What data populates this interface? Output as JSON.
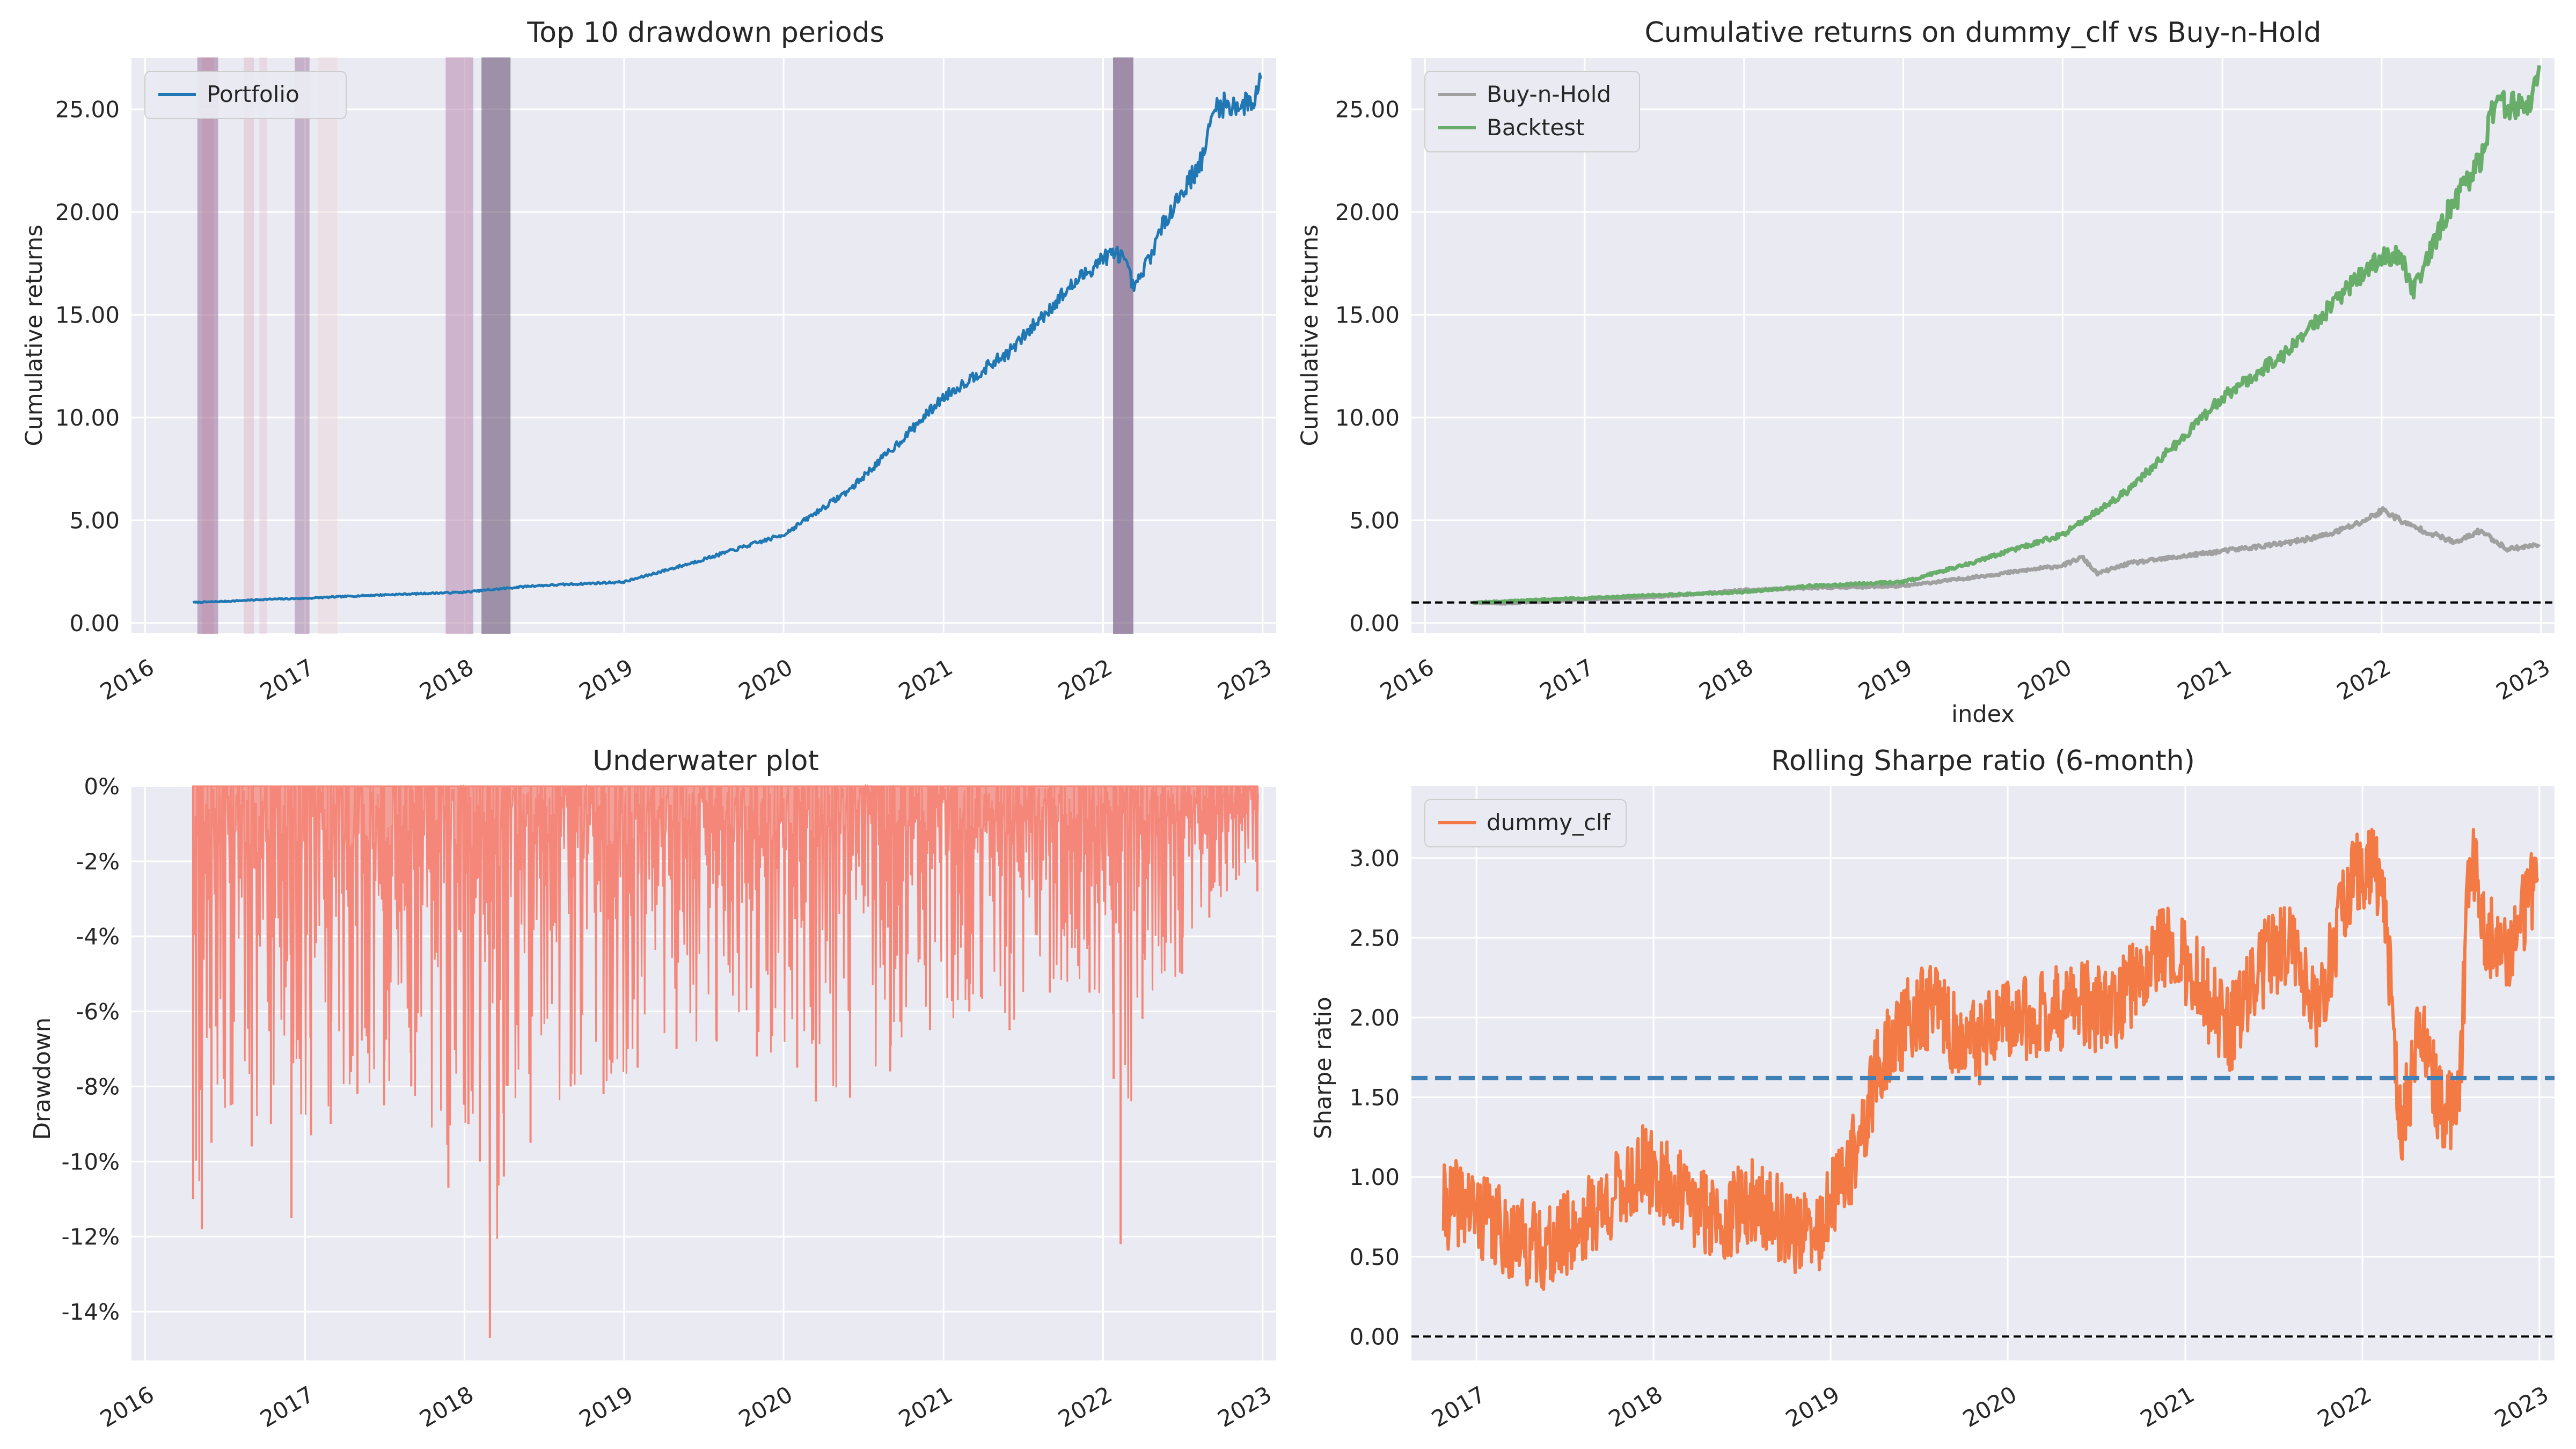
{
  "colors": {
    "axes_bg": "#EAEAF2",
    "grid": "#FFFFFF",
    "portfolio": "#1F77B4",
    "benchmark": "#A0A0A0",
    "backtest": "#68AD6A",
    "underwater": "#F4877A",
    "sharpe": "#F47A45",
    "sharpe_mean": "#3E7FB5",
    "reference": "#000000"
  },
  "chart_data": [
    {
      "id": "drawdown_periods",
      "type": "line",
      "title": "Top 10 drawdown periods",
      "xlabel": "",
      "ylabel": "Cumulative returns",
      "x_ticks": [
        "2016",
        "2017",
        "2018",
        "2019",
        "2020",
        "2021",
        "2022",
        "2023"
      ],
      "y_ticks": [
        "0.00",
        "5.00",
        "10.00",
        "15.00",
        "20.00",
        "25.00"
      ],
      "xlim": [
        "2015-12-01",
        "2023-02-01"
      ],
      "ylim": [
        -0.5,
        27.5
      ],
      "legend": {
        "placement": "top-left",
        "entries": [
          "Portfolio"
        ]
      },
      "series": [
        {
          "name": "Portfolio",
          "x": [
            "2016-04-20",
            "2016-07-01",
            "2016-10-01",
            "2017-01-01",
            "2017-06-01",
            "2018-01-01",
            "2018-06-01",
            "2019-01-01",
            "2019-06-01",
            "2020-01-01",
            "2020-06-01",
            "2020-10-01",
            "2021-01-01",
            "2021-06-01",
            "2021-10-01",
            "2022-01-01",
            "2022-02-10",
            "2022-03-15",
            "2022-06-01",
            "2022-08-15",
            "2022-09-15",
            "2022-11-15",
            "2022-12-10",
            "2022-12-28"
          ],
          "values": [
            1.0,
            1.05,
            1.15,
            1.2,
            1.35,
            1.5,
            1.8,
            2.0,
            2.9,
            4.3,
            6.5,
            9.0,
            11.0,
            13.2,
            16.0,
            17.8,
            18.0,
            16.2,
            20.0,
            22.5,
            25.2,
            25.2,
            25.4,
            26.5
          ]
        }
      ],
      "drawdown_periods": [
        {
          "start": "2016-05-01",
          "end": "2016-06-15",
          "shade": "#8C5A8C",
          "opacity": 0.45
        },
        {
          "start": "2016-05-12",
          "end": "2016-06-05",
          "shade": "#C98AA3",
          "opacity": 0.35
        },
        {
          "start": "2016-08-15",
          "end": "2016-09-05",
          "shade": "#D9A8B8",
          "opacity": 0.35
        },
        {
          "start": "2016-09-20",
          "end": "2016-10-05",
          "shade": "#E4B8C8",
          "opacity": 0.35
        },
        {
          "start": "2016-12-10",
          "end": "2017-01-10",
          "shade": "#9A6A9A",
          "opacity": 0.45
        },
        {
          "start": "2017-02-01",
          "end": "2017-03-15",
          "shade": "#EED6D6",
          "opacity": 0.45
        },
        {
          "start": "2017-11-20",
          "end": "2018-01-20",
          "shade": "#B889B0",
          "opacity": 0.55
        },
        {
          "start": "2018-02-10",
          "end": "2018-04-15",
          "shade": "#5E4A6A",
          "opacity": 0.55
        },
        {
          "start": "2022-01-25",
          "end": "2022-03-10",
          "shade": "#6E4F78",
          "opacity": 0.6
        }
      ]
    },
    {
      "id": "cumulative_returns",
      "type": "line",
      "title": "Cumulative returns on dummy_clf vs Buy-n-Hold",
      "xlabel": "index",
      "ylabel": "Cumulative returns",
      "x_ticks": [
        "2016",
        "2017",
        "2018",
        "2019",
        "2020",
        "2021",
        "2022",
        "2023"
      ],
      "y_ticks": [
        "0.00",
        "5.00",
        "10.00",
        "15.00",
        "20.00",
        "25.00"
      ],
      "xlim": [
        "2015-12-01",
        "2023-02-01"
      ],
      "ylim": [
        -0.5,
        27.5
      ],
      "reference_line": 1.0,
      "legend": {
        "placement": "top-left",
        "entries": [
          "Buy-n-Hold",
          "Backtest"
        ]
      },
      "series": [
        {
          "name": "Buy-n-Hold",
          "x": [
            "2016-04-20",
            "2016-07-01",
            "2017-01-01",
            "2017-06-01",
            "2018-01-01",
            "2018-06-01",
            "2019-01-01",
            "2019-06-01",
            "2020-01-01",
            "2020-02-15",
            "2020-03-20",
            "2020-06-01",
            "2021-01-01",
            "2021-06-01",
            "2021-09-01",
            "2021-11-15",
            "2022-01-05",
            "2022-03-01",
            "2022-06-20",
            "2022-08-15",
            "2022-10-15",
            "2022-12-28"
          ],
          "values": [
            1.0,
            0.95,
            1.15,
            1.25,
            1.6,
            1.7,
            1.8,
            2.2,
            2.8,
            3.2,
            2.4,
            2.9,
            3.5,
            3.9,
            4.3,
            4.9,
            5.5,
            4.8,
            3.9,
            4.5,
            3.6,
            3.8
          ]
        },
        {
          "name": "Backtest",
          "x": [
            "2016-04-20",
            "2016-07-01",
            "2016-10-01",
            "2017-01-01",
            "2017-06-01",
            "2018-01-01",
            "2018-06-01",
            "2019-01-01",
            "2019-06-01",
            "2020-01-01",
            "2020-06-01",
            "2020-10-01",
            "2021-01-01",
            "2021-06-01",
            "2021-10-01",
            "2022-01-01",
            "2022-02-10",
            "2022-03-15",
            "2022-06-01",
            "2022-08-15",
            "2022-09-15",
            "2022-11-15",
            "2022-12-10",
            "2022-12-28"
          ],
          "values": [
            1.0,
            1.05,
            1.15,
            1.2,
            1.35,
            1.5,
            1.8,
            2.0,
            2.9,
            4.3,
            6.5,
            9.0,
            11.0,
            13.2,
            16.0,
            17.8,
            18.0,
            16.2,
            20.0,
            22.5,
            25.2,
            25.2,
            25.4,
            26.5
          ]
        }
      ]
    },
    {
      "id": "underwater",
      "type": "area",
      "title": "Underwater plot",
      "xlabel": "",
      "ylabel": "Drawdown",
      "x_ticks": [
        "2016",
        "2017",
        "2018",
        "2019",
        "2020",
        "2021",
        "2022",
        "2023"
      ],
      "y_ticks": [
        "0%",
        "-2%",
        "-4%",
        "-6%",
        "-8%",
        "-10%",
        "-12%",
        "-14%"
      ],
      "xlim": [
        "2015-12-01",
        "2023-02-01"
      ],
      "ylim": [
        -15.3,
        0
      ],
      "series": [
        {
          "name": "Drawdown",
          "x": [
            "2016-04-20",
            "2016-05-10",
            "2016-06-01",
            "2016-07-15",
            "2016-09-01",
            "2016-10-15",
            "2016-12-01",
            "2017-01-15",
            "2017-03-01",
            "2017-05-01",
            "2017-07-01",
            "2017-09-01",
            "2017-11-25",
            "2018-01-10",
            "2018-02-05",
            "2018-02-28",
            "2018-04-01",
            "2018-06-01",
            "2018-09-01",
            "2018-11-15",
            "2019-02-01",
            "2019-05-01",
            "2019-08-01",
            "2019-11-01",
            "2020-02-01",
            "2020-03-15",
            "2020-06-01",
            "2020-09-01",
            "2020-12-01",
            "2021-03-01",
            "2021-06-01",
            "2021-09-01",
            "2021-12-01",
            "2022-01-25",
            "2022-02-10",
            "2022-04-01",
            "2022-07-01",
            "2022-09-01",
            "2022-11-01",
            "2022-12-20"
          ],
          "values": [
            -11.0,
            -11.8,
            -9.5,
            -8.5,
            -9.6,
            -9.0,
            -11.5,
            -9.3,
            -9.0,
            -8.2,
            -8.5,
            -8.0,
            -10.7,
            -9.0,
            -10.0,
            -14.7,
            -10.4,
            -9.5,
            -8.0,
            -8.2,
            -7.5,
            -7.0,
            -6.8,
            -7.2,
            -7.5,
            -8.4,
            -8.3,
            -7.6,
            -6.5,
            -6.0,
            -6.5,
            -5.5,
            -5.5,
            -7.8,
            -12.2,
            -6.2,
            -5.0,
            -3.5,
            -2.5,
            -2.8
          ]
        }
      ]
    },
    {
      "id": "rolling_sharpe",
      "type": "line",
      "title": "Rolling Sharpe ratio (6-month)",
      "xlabel": "",
      "ylabel": "Sharpe ratio",
      "x_ticks": [
        "2017",
        "2018",
        "2019",
        "2020",
        "2021",
        "2022",
        "2023"
      ],
      "y_ticks": [
        "0.00",
        "0.50",
        "1.00",
        "1.50",
        "2.00",
        "2.50",
        "3.00"
      ],
      "xlim": [
        "2016-08-20",
        "2023-02-01"
      ],
      "ylim": [
        -0.15,
        3.45
      ],
      "reference_line": 0.0,
      "mean_line": 1.62,
      "legend": {
        "placement": "top-left",
        "entries": [
          "dummy_clf"
        ]
      },
      "series": [
        {
          "name": "dummy_clf",
          "x": [
            "2016-10-25",
            "2016-12-01",
            "2017-02-01",
            "2017-04-01",
            "2017-06-01",
            "2017-08-01",
            "2017-10-01",
            "2017-12-10",
            "2018-02-01",
            "2018-04-01",
            "2018-06-01",
            "2018-08-01",
            "2018-10-01",
            "2018-12-01",
            "2019-01-20",
            "2019-03-01",
            "2019-04-10",
            "2019-06-01",
            "2019-08-01",
            "2019-10-01",
            "2019-12-01",
            "2020-02-01",
            "2020-04-01",
            "2020-06-01",
            "2020-08-01",
            "2020-10-01",
            "2020-12-01",
            "2021-02-01",
            "2021-04-01",
            "2021-06-01",
            "2021-08-01",
            "2021-10-01",
            "2021-12-01",
            "2022-01-20",
            "2022-02-15",
            "2022-03-20",
            "2022-05-01",
            "2022-06-15",
            "2022-07-20",
            "2022-08-10",
            "2022-09-15",
            "2022-11-01",
            "2022-12-28"
          ],
          "values": [
            0.8,
            0.85,
            0.7,
            0.6,
            0.55,
            0.7,
            0.85,
            1.05,
            0.95,
            0.8,
            0.75,
            0.85,
            0.7,
            0.6,
            0.95,
            1.2,
            1.7,
            1.95,
            2.1,
            1.8,
            1.9,
            2.0,
            2.05,
            2.1,
            2.0,
            2.3,
            2.5,
            2.2,
            1.9,
            2.3,
            2.5,
            2.0,
            2.8,
            3.0,
            2.8,
            1.3,
            1.9,
            1.4,
            1.5,
            3.1,
            2.5,
            2.4,
            2.9
          ]
        }
      ]
    }
  ]
}
